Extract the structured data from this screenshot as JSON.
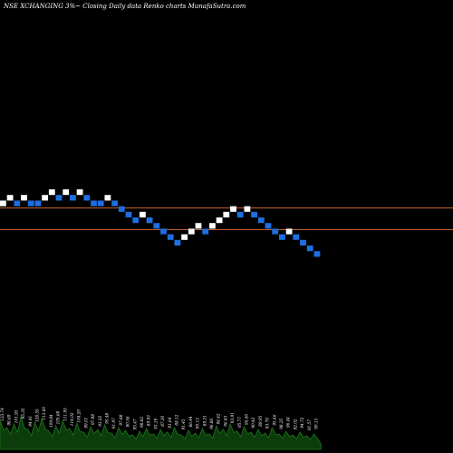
{
  "header": {
    "title": "NSE XCHANGING 3%~  Closing Daily data  Renko  charts MunafaSutra.com"
  },
  "colors": {
    "background": "#000000",
    "up_brick": "#ffffff",
    "down_brick": "#1e6fe0",
    "reference_line": "#c0622a",
    "volume_fill": "#0c3c0c",
    "volume_stroke": "#1a7a1a"
  },
  "chart_data": {
    "type": "renko",
    "title": "NSE XCHANGING 3%~  Closing Daily data  Renko  charts MunafaSutra.com",
    "brick_levels": [
      0,
      1,
      0,
      1,
      0,
      0,
      1,
      2,
      1,
      2,
      1,
      2,
      1,
      0,
      0,
      1,
      0,
      -1,
      -2,
      -3,
      -2,
      -3,
      -4,
      -5,
      -6,
      -7,
      -6,
      -5,
      -4,
      -5,
      -4,
      -3,
      -2,
      -1,
      -2,
      -1,
      -2,
      -3,
      -4,
      -5,
      -6,
      -5,
      -6,
      -7,
      -8,
      -9
    ],
    "brick_directions": [
      "up",
      "up",
      "down",
      "up",
      "down",
      "down",
      "up",
      "up",
      "down",
      "up",
      "down",
      "up",
      "down",
      "down",
      "down",
      "up",
      "down",
      "down",
      "down",
      "down",
      "up",
      "down",
      "down",
      "down",
      "down",
      "down",
      "up",
      "up",
      "up",
      "down",
      "up",
      "up",
      "up",
      "up",
      "down",
      "up",
      "down",
      "down",
      "down",
      "down",
      "down",
      "up",
      "down",
      "down",
      "down",
      "down"
    ],
    "reference_lines": [
      "upper",
      "lower"
    ],
    "volume_labels": [
      "133.74",
      "98.69",
      "101.93",
      "95.35",
      "94.41",
      "128.55",
      "113.66",
      "109.84",
      "105.68",
      "111.95",
      "114.02",
      "104.20",
      "99.01",
      "97.98",
      "93.22",
      "95.48",
      "91.97",
      "97.88",
      "90.56",
      "95.47",
      "98.82",
      "89.93",
      "93.19",
      "87.30",
      "91.64",
      "88.12",
      "91.45",
      "86.44",
      "90.13",
      "89.21",
      "96.86",
      "94.42",
      "96.83",
      "93.91",
      "95.77",
      "94.46",
      "90.42",
      "89.95",
      "93.79",
      "95.46",
      "98.35",
      "96.44",
      "92.02",
      "94.72",
      "91.57",
      "90.13"
    ]
  }
}
